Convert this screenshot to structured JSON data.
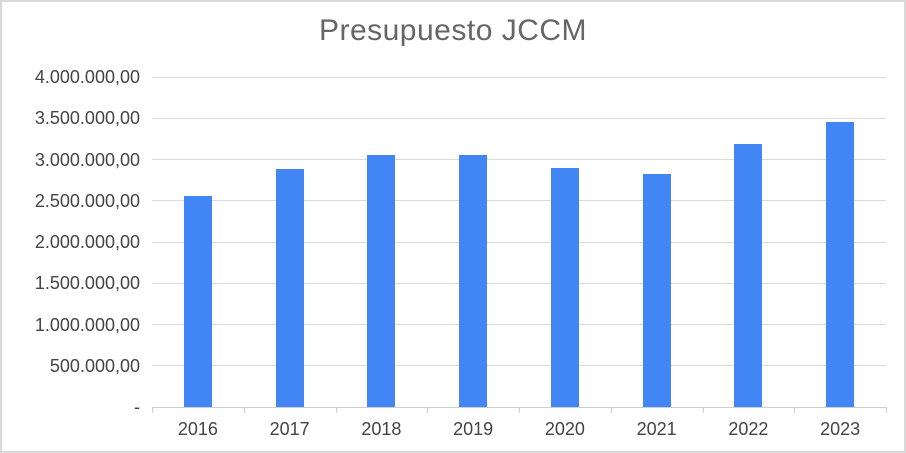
{
  "chart_data": {
    "type": "bar",
    "title": "Presupuesto JCCM",
    "categories": [
      "2016",
      "2017",
      "2018",
      "2019",
      "2020",
      "2021",
      "2022",
      "2023"
    ],
    "values": [
      2560000,
      2880000,
      3050000,
      3050000,
      2900000,
      2830000,
      3190000,
      3450000
    ],
    "xlabel": "",
    "ylabel": "",
    "ylim": [
      0,
      4000000
    ],
    "ytick_interval": 500000,
    "ytick_labels": [
      "-",
      "500.000,00",
      "1.000.000,00",
      "1.500.000,00",
      "2.000.000,00",
      "2.500.000,00",
      "3.000.000,00",
      "3.500.000,00",
      "4.000.000,00"
    ],
    "grid": "horizontal",
    "legend": "none"
  },
  "colors": {
    "bar": "#4285F4",
    "gridline": "#DADADA",
    "axis_line": "#CFCFCF",
    "title_text": "#666666",
    "axis_text": "#444444",
    "chart_border": "#D9D9D9",
    "background": "#FFFFFF"
  }
}
